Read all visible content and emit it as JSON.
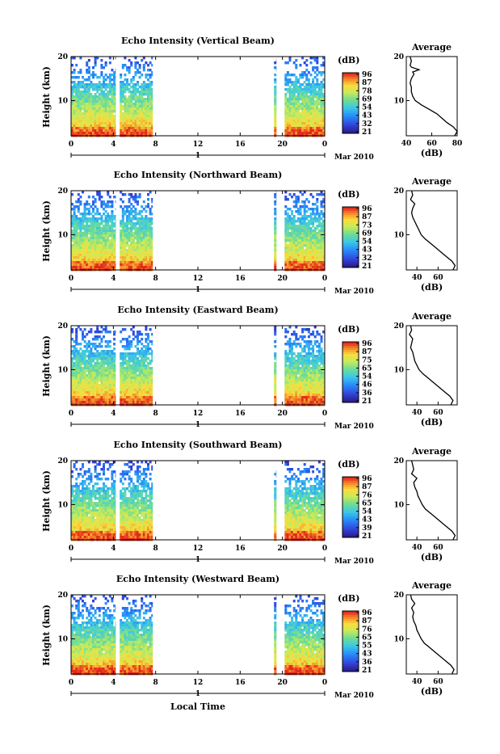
{
  "figure": {
    "xlabel": "Local Time",
    "date_label": "Mar 2010",
    "day_label": "1",
    "colorbar_unit": "(dB)",
    "colorbar_ticks": [
      [
        "96",
        "87",
        "78",
        "69",
        "54",
        "43",
        "32",
        "21"
      ],
      [
        "96",
        "87",
        "73",
        "69",
        "54",
        "43",
        "32",
        "21"
      ],
      [
        "96",
        "87",
        "75",
        "65",
        "54",
        "46",
        "36",
        "21"
      ],
      [
        "96",
        "87",
        "76",
        "65",
        "54",
        "43",
        "39",
        "21"
      ],
      [
        "96",
        "87",
        "76",
        "65",
        "55",
        "43",
        "36",
        "21"
      ]
    ]
  },
  "chart_data": [
    {
      "type": "heatmap",
      "title": "Echo Intensity (Vertical Beam)",
      "ylabel": "Height (km)",
      "xlabel": "Local Time",
      "x_ticks": [
        "0",
        "4",
        "8",
        "12",
        "16",
        "20",
        "0"
      ],
      "y_ticks": [
        "20",
        "10"
      ],
      "xlim": [
        0,
        24
      ],
      "ylim": [
        2,
        20
      ],
      "data_segments_hours": [
        [
          0,
          4.2
        ],
        [
          4.6,
          7.7
        ],
        [
          19.2,
          19.4
        ],
        [
          20.2,
          24
        ]
      ],
      "colorbar": {
        "unit": "(dB)",
        "ticks": [
          "96",
          "87",
          "78",
          "69",
          "54",
          "43",
          "32",
          "21"
        ],
        "range": [
          21,
          96
        ]
      },
      "average": {
        "title": "Average",
        "xlabel": "(dB)",
        "x_ticks": [
          "40",
          "60",
          "80"
        ],
        "y_ticks": [
          "20",
          "10"
        ],
        "xlim": [
          40,
          80
        ],
        "ylim": [
          2,
          20
        ],
        "profile": [
          [
            78,
            2
          ],
          [
            80,
            3
          ],
          [
            77,
            4
          ],
          [
            72,
            5
          ],
          [
            68,
            6
          ],
          [
            64,
            7
          ],
          [
            58,
            8
          ],
          [
            52,
            9
          ],
          [
            47,
            10
          ],
          [
            45,
            11
          ],
          [
            44,
            12
          ],
          [
            44,
            13
          ],
          [
            43,
            14
          ],
          [
            44,
            15
          ],
          [
            46,
            16
          ],
          [
            45,
            16.5
          ],
          [
            50,
            17
          ],
          [
            44,
            17.6
          ],
          [
            43,
            18
          ],
          [
            44,
            19
          ],
          [
            43,
            20
          ]
        ]
      }
    },
    {
      "type": "heatmap",
      "title": "Echo Intensity (Northward Beam)",
      "ylabel": "Height (km)",
      "xlabel": "Local Time",
      "x_ticks": [
        "0",
        "4",
        "8",
        "12",
        "16",
        "20",
        "0"
      ],
      "y_ticks": [
        "20",
        "10"
      ],
      "xlim": [
        0,
        24
      ],
      "ylim": [
        2,
        20
      ],
      "data_segments_hours": [
        [
          0,
          4.2
        ],
        [
          4.6,
          7.7
        ],
        [
          19.2,
          19.4
        ],
        [
          20.2,
          24
        ]
      ],
      "colorbar": {
        "unit": "(dB)",
        "ticks": [
          "96",
          "87",
          "73",
          "69",
          "54",
          "43",
          "32",
          "21"
        ],
        "range": [
          21,
          96
        ]
      },
      "average": {
        "title": "Average",
        "xlabel": "(dB)",
        "x_ticks": [
          "40",
          "60"
        ],
        "y_ticks": [
          "20",
          "10"
        ],
        "xlim": [
          30,
          78
        ],
        "ylim": [
          2,
          20
        ],
        "profile": [
          [
            74,
            2
          ],
          [
            76,
            3
          ],
          [
            73,
            4
          ],
          [
            68,
            5
          ],
          [
            63,
            6
          ],
          [
            58,
            7
          ],
          [
            53,
            8
          ],
          [
            48,
            9
          ],
          [
            44,
            10
          ],
          [
            42,
            11
          ],
          [
            40,
            12
          ],
          [
            38,
            13
          ],
          [
            36,
            14
          ],
          [
            35,
            15
          ],
          [
            36,
            16
          ],
          [
            38,
            17
          ],
          [
            34,
            18
          ],
          [
            36,
            19
          ],
          [
            35,
            20
          ]
        ]
      }
    },
    {
      "type": "heatmap",
      "title": "Echo Intensity (Eastward Beam)",
      "ylabel": "Height (km)",
      "xlabel": "Local Time",
      "x_ticks": [
        "0",
        "4",
        "8",
        "12",
        "16",
        "20",
        "0"
      ],
      "y_ticks": [
        "20",
        "10"
      ],
      "xlim": [
        0,
        24
      ],
      "ylim": [
        2,
        20
      ],
      "data_segments_hours": [
        [
          0,
          4.2
        ],
        [
          4.6,
          7.7
        ],
        [
          19.2,
          19.4
        ],
        [
          20.2,
          24
        ]
      ],
      "colorbar": {
        "unit": "(dB)",
        "ticks": [
          "96",
          "87",
          "75",
          "65",
          "54",
          "46",
          "36",
          "21"
        ],
        "range": [
          21,
          96
        ]
      },
      "average": {
        "title": "Average",
        "xlabel": "(dB)",
        "x_ticks": [
          "40",
          "60"
        ],
        "y_ticks": [
          "20",
          "10"
        ],
        "xlim": [
          30,
          78
        ],
        "ylim": [
          2,
          20
        ],
        "profile": [
          [
            72,
            2
          ],
          [
            74,
            3
          ],
          [
            71,
            4
          ],
          [
            66,
            5
          ],
          [
            61,
            6
          ],
          [
            56,
            7
          ],
          [
            51,
            8
          ],
          [
            46,
            9
          ],
          [
            42,
            10
          ],
          [
            40,
            11
          ],
          [
            38,
            12
          ],
          [
            37,
            13
          ],
          [
            36,
            14
          ],
          [
            34,
            15
          ],
          [
            35,
            16
          ],
          [
            36,
            17
          ],
          [
            33,
            18
          ],
          [
            35,
            19
          ],
          [
            34,
            20
          ]
        ]
      }
    },
    {
      "type": "heatmap",
      "title": "Echo Intensity (Southward Beam)",
      "ylabel": "Height (km)",
      "xlabel": "Local Time",
      "x_ticks": [
        "0",
        "4",
        "8",
        "12",
        "16",
        "20",
        "0"
      ],
      "y_ticks": [
        "20",
        "10"
      ],
      "xlim": [
        0,
        24
      ],
      "ylim": [
        2,
        20
      ],
      "data_segments_hours": [
        [
          0,
          4.2
        ],
        [
          4.6,
          7.7
        ],
        [
          19.2,
          19.4
        ],
        [
          20.2,
          24
        ]
      ],
      "colorbar": {
        "unit": "(dB)",
        "ticks": [
          "96",
          "87",
          "76",
          "65",
          "54",
          "43",
          "39",
          "21"
        ],
        "range": [
          21,
          96
        ]
      },
      "average": {
        "title": "Average",
        "xlabel": "(dB)",
        "x_ticks": [
          "40",
          "60"
        ],
        "y_ticks": [
          "20",
          "10"
        ],
        "xlim": [
          30,
          78
        ],
        "ylim": [
          2,
          20
        ],
        "profile": [
          [
            74,
            2
          ],
          [
            76,
            3
          ],
          [
            73,
            4
          ],
          [
            68,
            5
          ],
          [
            63,
            6
          ],
          [
            58,
            7
          ],
          [
            53,
            8
          ],
          [
            48,
            9
          ],
          [
            45,
            10
          ],
          [
            43,
            11
          ],
          [
            41,
            12
          ],
          [
            40,
            13
          ],
          [
            38,
            14
          ],
          [
            37,
            15
          ],
          [
            40,
            16
          ],
          [
            35,
            17
          ],
          [
            37,
            18
          ],
          [
            36,
            19
          ],
          [
            35,
            20
          ]
        ]
      }
    },
    {
      "type": "heatmap",
      "title": "Echo Intensity (Westward Beam)",
      "ylabel": "Height (km)",
      "xlabel": "Local Time",
      "x_ticks": [
        "0",
        "4",
        "8",
        "12",
        "16",
        "20",
        "0"
      ],
      "y_ticks": [
        "20",
        "10"
      ],
      "xlim": [
        0,
        24
      ],
      "ylim": [
        2,
        20
      ],
      "data_segments_hours": [
        [
          0,
          4.2
        ],
        [
          4.6,
          7.7
        ],
        [
          19.2,
          19.4
        ],
        [
          20.2,
          24
        ]
      ],
      "colorbar": {
        "unit": "(dB)",
        "ticks": [
          "96",
          "87",
          "76",
          "65",
          "55",
          "43",
          "36",
          "21"
        ],
        "range": [
          21,
          96
        ]
      },
      "average": {
        "title": "Average",
        "xlabel": "(dB)",
        "x_ticks": [
          "40",
          "60"
        ],
        "y_ticks": [
          "20",
          "10"
        ],
        "xlim": [
          30,
          78
        ],
        "ylim": [
          2,
          20
        ],
        "profile": [
          [
            73,
            2
          ],
          [
            75,
            3
          ],
          [
            72,
            4
          ],
          [
            67,
            5
          ],
          [
            62,
            6
          ],
          [
            57,
            7
          ],
          [
            52,
            8
          ],
          [
            47,
            9
          ],
          [
            44,
            10
          ],
          [
            42,
            11
          ],
          [
            40,
            12
          ],
          [
            39,
            13
          ],
          [
            37,
            14
          ],
          [
            36,
            15
          ],
          [
            37,
            16
          ],
          [
            35,
            17
          ],
          [
            38,
            18
          ],
          [
            35,
            19
          ],
          [
            34,
            20
          ]
        ]
      }
    }
  ]
}
